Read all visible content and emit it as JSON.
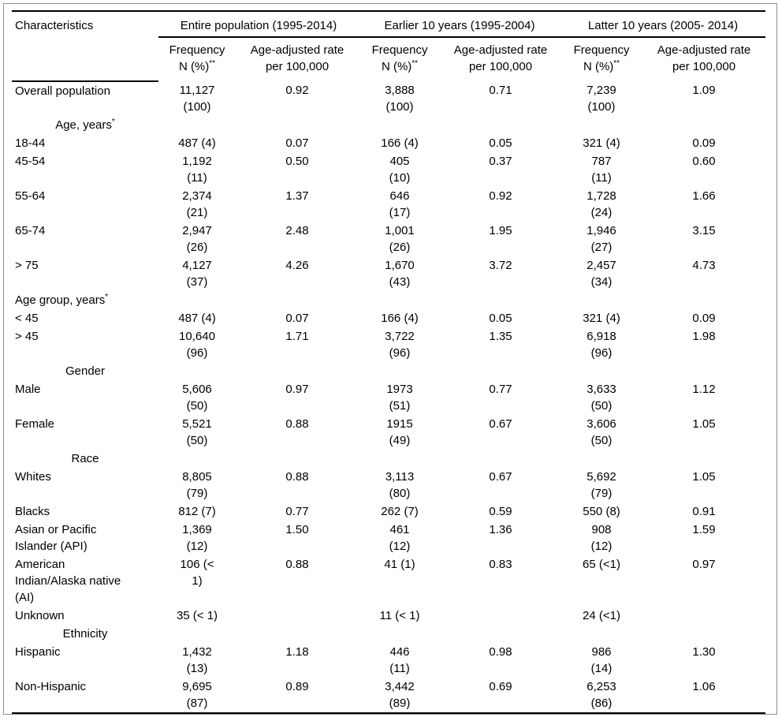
{
  "table": {
    "header": {
      "characteristics": "Characteristics",
      "groups": [
        {
          "label": "Entire population (1995-2014)"
        },
        {
          "label": "Earlier 10 years (1995-2004)"
        },
        {
          "label": "Latter 10 years (2005- 2014)"
        }
      ],
      "sub": {
        "frequency": "Frequency\nN (%)",
        "frequency_sup": "**",
        "rate": "Age-adjusted rate\nper 100,000"
      }
    },
    "rows": [
      {
        "type": "data",
        "label": "Overall population",
        "cells": [
          "11,127\n(100)",
          "0.92",
          "3,888\n(100)",
          "0.71",
          "7,239\n(100)",
          "1.09"
        ]
      },
      {
        "type": "section",
        "label": "Age, years",
        "sup": "*"
      },
      {
        "type": "data",
        "label": "18-44",
        "cells": [
          "487 (4)",
          "0.07",
          "166 (4)",
          "0.05",
          "321 (4)",
          "0.09"
        ]
      },
      {
        "type": "data",
        "label": "45-54",
        "cells": [
          "1,192\n(11)",
          "0.50",
          "405\n(10)",
          "0.37",
          "787\n(11)",
          "0.60"
        ]
      },
      {
        "type": "data",
        "label": "55-64",
        "cells": [
          "2,374\n(21)",
          "1.37",
          "646\n(17)",
          "0.92",
          "1,728\n(24)",
          "1.66"
        ]
      },
      {
        "type": "data",
        "label": "65-74",
        "cells": [
          "2,947\n(26)",
          "2.48",
          "1,001\n(26)",
          "1.95",
          "1,946\n(27)",
          "3.15"
        ]
      },
      {
        "type": "data",
        "label": "> 75",
        "cells": [
          "4,127\n(37)",
          "4.26",
          "1,670\n(43)",
          "3.72",
          "2,457\n(34)",
          "4.73"
        ]
      },
      {
        "type": "section",
        "label": "Age group, years",
        "sup": "*",
        "align": "left"
      },
      {
        "type": "data",
        "label": "< 45",
        "cells": [
          "487 (4)",
          "0.07",
          "166 (4)",
          "0.05",
          "321 (4)",
          "0.09"
        ]
      },
      {
        "type": "data",
        "label": "> 45",
        "cells": [
          "10,640\n(96)",
          "1.71",
          "3,722\n(96)",
          "1.35",
          "6,918\n(96)",
          "1.98"
        ]
      },
      {
        "type": "section",
        "label": "Gender"
      },
      {
        "type": "data",
        "label": "Male",
        "cells": [
          "5,606\n(50)",
          "0.97",
          "1973\n(51)",
          "0.77",
          "3,633\n(50)",
          "1.12"
        ]
      },
      {
        "type": "data",
        "label": "Female",
        "cells": [
          "5,521\n(50)",
          "0.88",
          "1915\n(49)",
          "0.67",
          "3,606\n(50)",
          "1.05"
        ]
      },
      {
        "type": "section",
        "label": "Race"
      },
      {
        "type": "data",
        "label": "Whites",
        "cells": [
          "8,805\n(79)",
          "0.88",
          "3,113\n(80)",
          "0.67",
          "5,692\n(79)",
          "1.05"
        ]
      },
      {
        "type": "data",
        "label": "Blacks",
        "cells": [
          "812 (7)",
          "0.77",
          "262 (7)",
          "0.59",
          "550 (8)",
          "0.91"
        ]
      },
      {
        "type": "data",
        "label": "Asian or Pacific\nIslander (API)",
        "cells": [
          "1,369\n(12)",
          "1.50",
          "461\n(12)",
          "1.36",
          "908\n(12)",
          "1.59"
        ]
      },
      {
        "type": "data",
        "label": "American\nIndian/Alaska native\n(AI)",
        "cells": [
          "106 (<\n1)",
          "0.88",
          "41 (1)",
          "0.83",
          "65 (<1)",
          "0.97"
        ]
      },
      {
        "type": "data",
        "label": "Unknown",
        "cells": [
          "35 (< 1)",
          "",
          "11 (< 1)",
          "",
          "24 (<1)",
          ""
        ]
      },
      {
        "type": "section",
        "label": "Ethnicity"
      },
      {
        "type": "data",
        "label": "Hispanic",
        "cells": [
          "1,432\n(13)",
          "1.18",
          "446\n(11)",
          "0.98",
          "986\n(14)",
          "1.30"
        ]
      },
      {
        "type": "data",
        "label": "Non-Hispanic",
        "cells": [
          "9,695\n(87)",
          "0.89",
          "3,442\n(89)",
          "0.69",
          "6,253\n(86)",
          "1.06"
        ]
      }
    ]
  }
}
